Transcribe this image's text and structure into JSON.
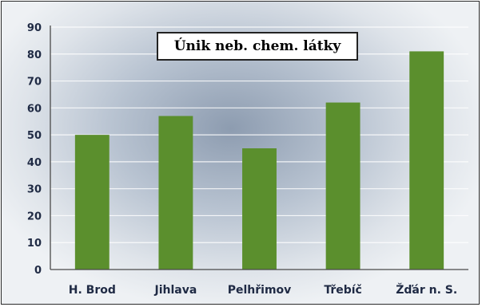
{
  "colors": {
    "bar": "#5b8f2d",
    "gridline": "#ffffff",
    "axis": "#4a4a4a",
    "text": "#1f2a44",
    "background_center": "#8d9cb0",
    "background_edge": "#eef1f4"
  },
  "chart_data": {
    "type": "bar",
    "title": "Únik neb. chem. látky",
    "categories": [
      "H. Brod",
      "Jihlava",
      "Pelhřimov",
      "Třebíč",
      "Žďár n. S."
    ],
    "values": [
      50,
      57,
      45,
      62,
      81
    ],
    "xlabel": "",
    "ylabel": "",
    "ylim": [
      0,
      90
    ],
    "yticks": [
      0,
      10,
      20,
      30,
      40,
      50,
      60,
      70,
      80,
      90
    ],
    "grid": true,
    "legend": "none"
  }
}
